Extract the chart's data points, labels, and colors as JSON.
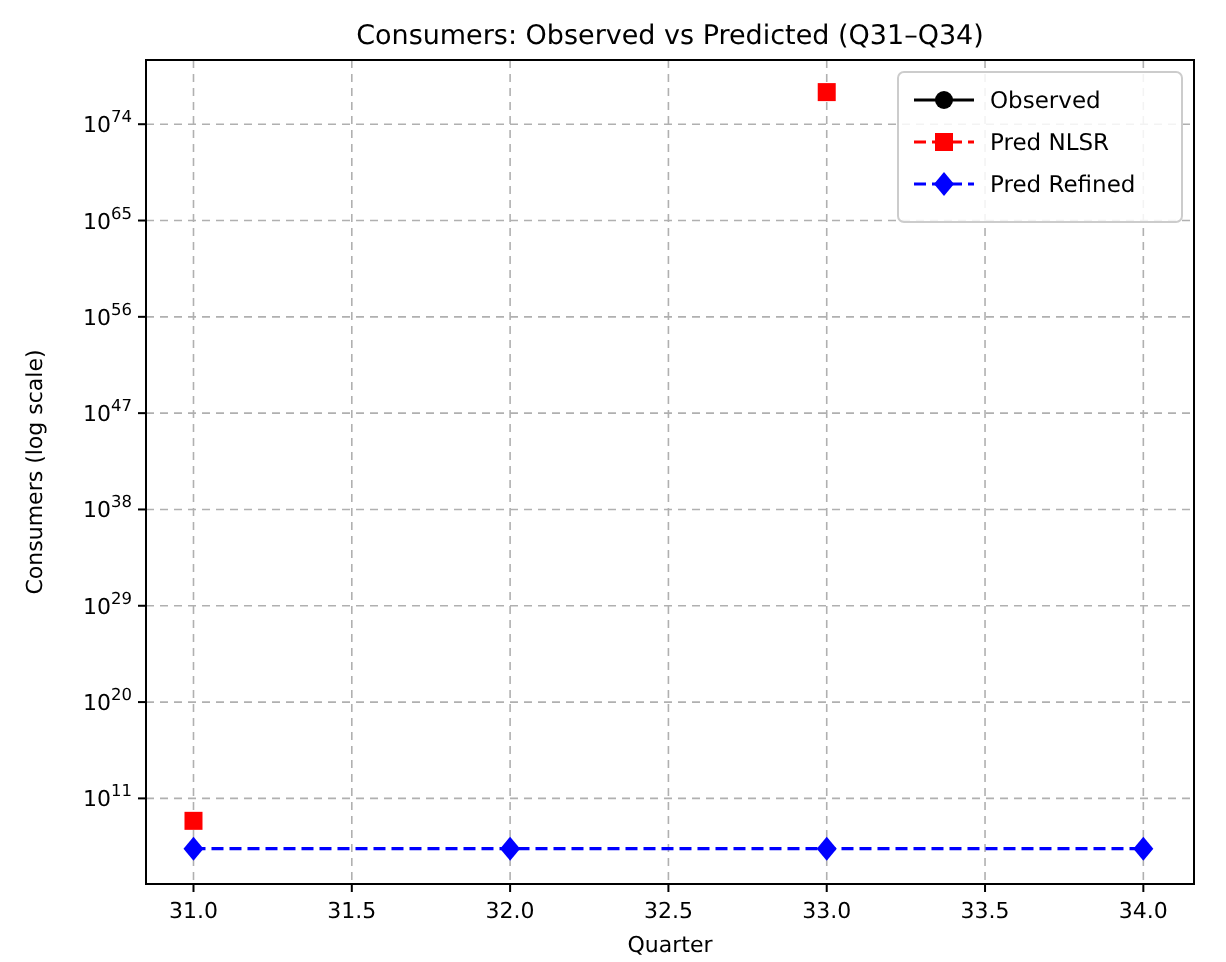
{
  "chart_data": {
    "type": "line",
    "title": "Consumers: Observed vs Predicted (Q31–Q34)",
    "xlabel": "Quarter",
    "ylabel": "Consumers (log scale)",
    "x": [
      31,
      32,
      33,
      34
    ],
    "series": [
      {
        "name": "Observed",
        "color": "#000000",
        "values": [
          null,
          null,
          null,
          null
        ],
        "marker": "circle",
        "line_style": "solid"
      },
      {
        "name": "Pred NLSR",
        "color": "#ff0000",
        "values": [
          800000000.0,
          null,
          1e+77,
          null
        ],
        "marker": "square",
        "line_style": "dashed"
      },
      {
        "name": "Pred Refined",
        "color": "#0000ff",
        "values": [
          2000000.0,
          2000000.0,
          2000000.0,
          2000000.0
        ],
        "marker": "diamond",
        "line_style": "dashed"
      }
    ],
    "log": "y",
    "grid": true,
    "legend": "top right",
    "xlim": [
      30.85,
      34.16
    ],
    "xticks": [
      {
        "value": 31,
        "label": "31.0"
      },
      {
        "value": 31.5,
        "label": "31.5"
      },
      {
        "value": 32,
        "label": "32.0"
      },
      {
        "value": 32.5,
        "label": "32.5"
      },
      {
        "value": 33,
        "label": "33.0"
      },
      {
        "value": 33.5,
        "label": "33.5"
      },
      {
        "value": 34,
        "label": "34.0"
      }
    ],
    "ylim": [
      1000.0,
      1e+80
    ],
    "yticks": [
      {
        "value": 100000000000.0,
        "label": "10$^{11}$"
      },
      {
        "value": 1e+20,
        "label": "10$^{20}$"
      },
      {
        "value": 1e+29,
        "label": "10$^{29}$"
      },
      {
        "value": 1e+38,
        "label": "10$^{38}$"
      },
      {
        "value": 1e+47,
        "label": "10$^{47}$"
      },
      {
        "value": 1e+56,
        "label": "10$^{56}$"
      },
      {
        "value": 1e+65,
        "label": "10$^{65}$"
      },
      {
        "value": 1e+74,
        "label": "10$^{74}$"
      }
    ]
  }
}
